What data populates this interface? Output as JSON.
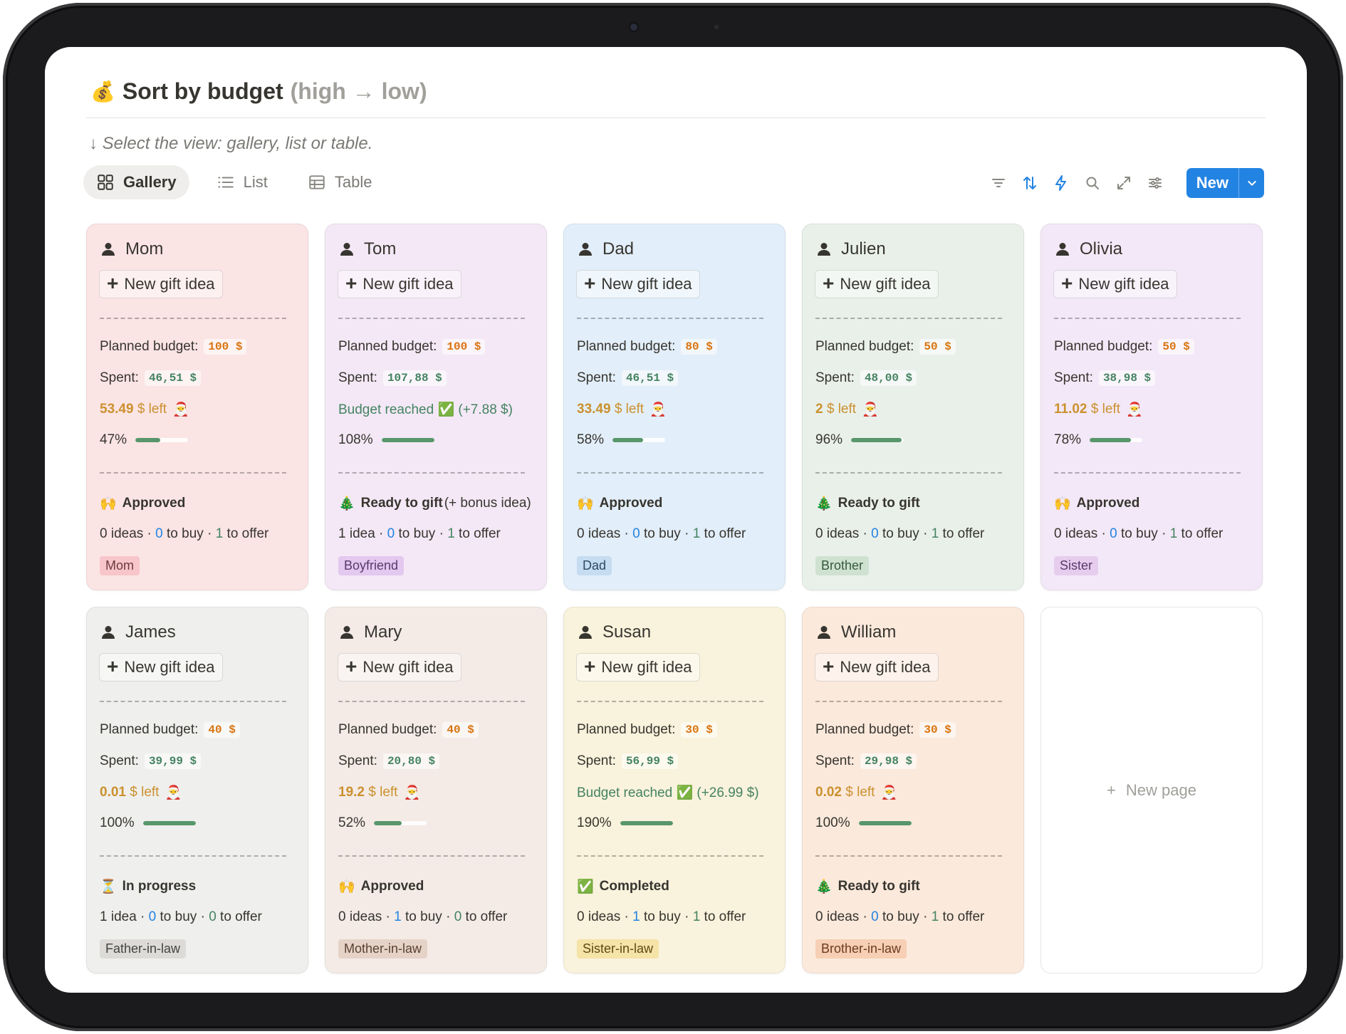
{
  "page": {
    "icon": "money-bag-icon",
    "title": "Sort by budget",
    "title_muted": "(high → low)",
    "subtitle": "↓ Select the view: gallery, list or table."
  },
  "tabs": [
    {
      "label": "Gallery",
      "icon": "gallery-icon",
      "active": true
    },
    {
      "label": "List",
      "icon": "list-icon",
      "active": false
    },
    {
      "label": "Table",
      "icon": "table-icon",
      "active": false
    }
  ],
  "toolbar": {
    "icons": [
      "filter-icon",
      "sort-icon",
      "automation-icon",
      "search-icon",
      "expand-icon",
      "settings-icon"
    ],
    "new_label": "New",
    "accent": "#2383e2"
  },
  "labels": {
    "new_gift_idea": "New gift idea",
    "planned_budget": "Planned budget:",
    "spent": "Spent:",
    "new_page": "New page"
  },
  "cards": [
    {
      "name": "Mom",
      "bg": "#fbe4e4",
      "budget": "100 $",
      "spent": "46,51 $",
      "left_amount": "53.49",
      "left_suffix": " $ left",
      "reached": null,
      "pct": "47%",
      "progress": 0.47,
      "status_icon": "🙌",
      "status": "Approved",
      "status_extra": "",
      "ideas_n": "0",
      "ideas_word": "ideas",
      "to_buy": "0",
      "to_offer": "1",
      "tag": "Mom",
      "tag_bg": "#f7c6cb",
      "tag_color": "#6d3a3a"
    },
    {
      "name": "Tom",
      "bg": "#f4e8f6",
      "budget": "100 $",
      "spent": "107,88 $",
      "left_amount": null,
      "left_suffix": null,
      "reached": "Budget reached ✅ (+7.88 $)",
      "pct": "108%",
      "progress": 1.0,
      "status_icon": "🎄",
      "status": "Ready to gift",
      "status_extra": " (+ bonus idea)",
      "ideas_n": "1",
      "ideas_word": "idea",
      "to_buy": "0",
      "to_offer": "1",
      "tag": "Boyfriend",
      "tag_bg": "#e3c8ef",
      "tag_color": "#5a3a6d"
    },
    {
      "name": "Dad",
      "bg": "#e2eef9",
      "budget": "80 $",
      "spent": "46,51 $",
      "left_amount": "33.49",
      "left_suffix": " $ left",
      "reached": null,
      "pct": "58%",
      "progress": 0.58,
      "status_icon": "🙌",
      "status": "Approved",
      "status_extra": "",
      "ideas_n": "0",
      "ideas_word": "ideas",
      "to_buy": "0",
      "to_offer": "1",
      "tag": "Dad",
      "tag_bg": "#c6dcf0",
      "tag_color": "#2e4a63"
    },
    {
      "name": "Julien",
      "bg": "#e9f0ea",
      "budget": "50 $",
      "spent": "48,00 $",
      "left_amount": "2",
      "left_suffix": " $ left",
      "reached": null,
      "pct": "96%",
      "progress": 0.96,
      "status_icon": "🎄",
      "status": "Ready to gift",
      "status_extra": "",
      "ideas_n": "0",
      "ideas_word": "ideas",
      "to_buy": "0",
      "to_offer": "1",
      "tag": "Brother",
      "tag_bg": "#cfe2d1",
      "tag_color": "#355a3c"
    },
    {
      "name": "Olivia",
      "bg": "#f3e8f7",
      "budget": "50 $",
      "spent": "38,98 $",
      "left_amount": "11.02",
      "left_suffix": " $ left",
      "reached": null,
      "pct": "78%",
      "progress": 0.78,
      "status_icon": "🙌",
      "status": "Approved",
      "status_extra": "",
      "ideas_n": "0",
      "ideas_word": "ideas",
      "to_buy": "0",
      "to_offer": "1",
      "tag": "Sister",
      "tag_bg": "#e6cdee",
      "tag_color": "#5a3a6d"
    },
    {
      "name": "James",
      "bg": "#efefed",
      "budget": "40 $",
      "spent": "39,99 $",
      "left_amount": "0.01",
      "left_suffix": " $ left",
      "reached": null,
      "pct": "100%",
      "progress": 1.0,
      "status_icon": "⏳",
      "status": "In progress",
      "status_extra": "",
      "ideas_n": "1",
      "ideas_word": "idea",
      "to_buy": "0",
      "to_offer": "0",
      "tag": "Father-in-law",
      "tag_bg": "#dcdbd8",
      "tag_color": "#46443f"
    },
    {
      "name": "Mary",
      "bg": "#f4ebe6",
      "budget": "40 $",
      "spent": "20,80 $",
      "left_amount": "19.2",
      "left_suffix": " $ left",
      "reached": null,
      "pct": "52%",
      "progress": 0.52,
      "status_icon": "🙌",
      "status": "Approved",
      "status_extra": "",
      "ideas_n": "0",
      "ideas_word": "ideas",
      "to_buy": "1",
      "to_offer": "0",
      "tag": "Mother-in-law",
      "tag_bg": "#e6d3c8",
      "tag_color": "#5b4033"
    },
    {
      "name": "Susan",
      "bg": "#f9f2dc",
      "budget": "30 $",
      "spent": "56,99 $",
      "left_amount": null,
      "left_suffix": null,
      "reached": "Budget reached ✅ (+26.99 $)",
      "pct": "190%",
      "progress": 1.0,
      "status_icon": "✅",
      "status": "Completed",
      "status_extra": "",
      "ideas_n": "0",
      "ideas_word": "ideas",
      "to_buy": "1",
      "to_offer": "1",
      "tag": "Sister-in-law",
      "tag_bg": "#f5e3a7",
      "tag_color": "#5f4a14"
    },
    {
      "name": "William",
      "bg": "#fbe9dc",
      "budget": "30 $",
      "spent": "29,98 $",
      "left_amount": "0.02",
      "left_suffix": " $ left",
      "reached": null,
      "pct": "100%",
      "progress": 1.0,
      "status_icon": "🎄",
      "status": "Ready to gift",
      "status_extra": "",
      "ideas_n": "0",
      "ideas_word": "ideas",
      "to_buy": "0",
      "to_offer": "1",
      "tag": "Brother-in-law",
      "tag_bg": "#f6cfb4",
      "tag_color": "#6b3b1e"
    }
  ]
}
